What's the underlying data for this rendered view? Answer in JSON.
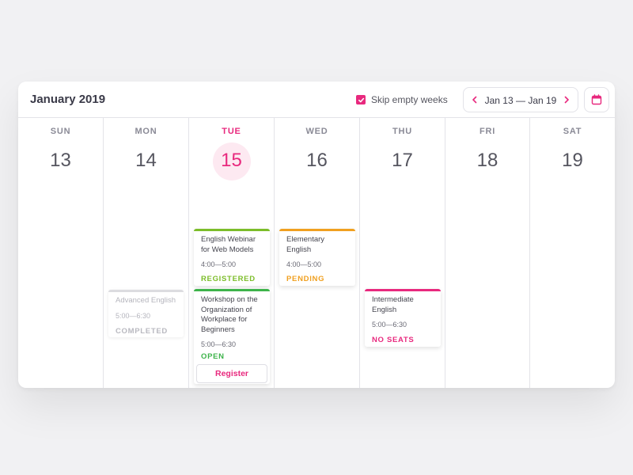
{
  "header": {
    "title": "January 2019",
    "skip_label": "Skip empty weeks",
    "skip_checked": true,
    "range_label": "Jan 13 — Jan 19"
  },
  "colors": {
    "accent": "#e8297e",
    "registered": "#7cbd2a",
    "pending": "#f0a020",
    "open": "#3db34a",
    "no_seats": "#e8297e",
    "completed": "#b9b9c0"
  },
  "days": [
    {
      "name": "SUN",
      "num": "13"
    },
    {
      "name": "MON",
      "num": "14"
    },
    {
      "name": "TUE",
      "num": "15",
      "today": true
    },
    {
      "name": "WED",
      "num": "16"
    },
    {
      "name": "THU",
      "num": "17"
    },
    {
      "name": "FRI",
      "num": "18"
    },
    {
      "name": "SAT",
      "num": "19"
    }
  ],
  "events": {
    "advanced": {
      "title": "Advanced English",
      "time": "5:00—6:30",
      "status": "COMPLETED"
    },
    "webinar": {
      "title": "English Webinar for Web Models",
      "time": "4:00—5:00",
      "status": "REGISTERED"
    },
    "workshop": {
      "title": "Workshop on the Organization of Workplace for Beginners",
      "time": "5:00—6:30",
      "status": "OPEN",
      "button": "Register"
    },
    "elementary": {
      "title": "Elementary English",
      "time": "4:00—5:00",
      "status": "PENDING"
    },
    "intermediate": {
      "title": "Intermediate English",
      "time": "5:00—6:30",
      "status": "NO SEATS"
    }
  }
}
